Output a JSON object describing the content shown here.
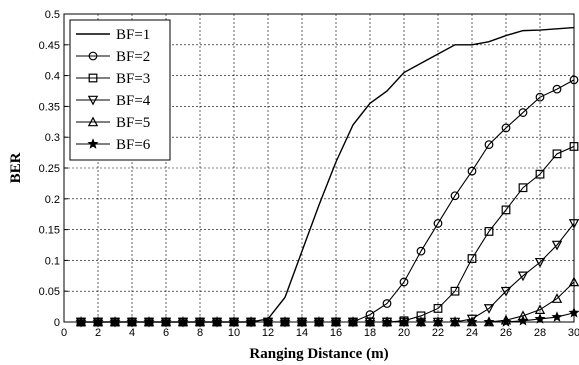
{
  "chart_data": {
    "type": "line",
    "title": "",
    "xlabel": "Ranging Distance (m)",
    "ylabel": "BER",
    "xlim": [
      0,
      30
    ],
    "ylim": [
      0,
      0.5
    ],
    "xticks": [
      0,
      2,
      4,
      6,
      8,
      10,
      12,
      14,
      16,
      18,
      20,
      22,
      24,
      26,
      28,
      30
    ],
    "yticks": [
      0,
      0.05,
      0.1,
      0.15,
      0.2,
      0.25,
      0.3,
      0.35,
      0.4,
      0.45,
      0.5
    ],
    "grid": true,
    "legend_position": "top-left",
    "x": [
      1,
      2,
      3,
      4,
      5,
      6,
      7,
      8,
      9,
      10,
      11,
      12,
      13,
      14,
      15,
      16,
      17,
      18,
      19,
      20,
      21,
      22,
      23,
      24,
      25,
      26,
      27,
      28,
      29,
      30
    ],
    "series": [
      {
        "name": "BF=1",
        "marker": "none",
        "values": [
          0,
          0,
          0,
          0,
          0,
          0,
          0,
          0,
          0,
          0,
          0,
          0.005,
          0.04,
          0.115,
          0.19,
          0.26,
          0.32,
          0.355,
          0.375,
          0.405,
          0.42,
          0.435,
          0.45,
          0.45,
          0.455,
          0.465,
          0.473,
          0.474,
          0.476,
          0.478
        ]
      },
      {
        "name": "BF=2",
        "marker": "circle",
        "values": [
          0,
          0,
          0,
          0,
          0,
          0,
          0,
          0,
          0,
          0,
          0,
          0,
          0,
          0,
          0,
          0,
          0,
          0.012,
          0.03,
          0.065,
          0.115,
          0.16,
          0.205,
          0.245,
          0.288,
          0.315,
          0.34,
          0.365,
          0.378,
          0.393
        ]
      },
      {
        "name": "BF=3",
        "marker": "square",
        "values": [
          0,
          0,
          0,
          0,
          0,
          0,
          0,
          0,
          0,
          0,
          0,
          0,
          0,
          0,
          0,
          0,
          0,
          0,
          0,
          0.002,
          0.01,
          0.022,
          0.05,
          0.103,
          0.147,
          0.182,
          0.218,
          0.24,
          0.273,
          0.285
        ]
      },
      {
        "name": "BF=4",
        "marker": "triangle-down",
        "values": [
          0,
          0,
          0,
          0,
          0,
          0,
          0,
          0,
          0,
          0,
          0,
          0,
          0,
          0,
          0,
          0,
          0,
          0,
          0,
          0,
          0,
          0,
          0,
          0.005,
          0.022,
          0.05,
          0.075,
          0.097,
          0.125,
          0.16
        ]
      },
      {
        "name": "BF=5",
        "marker": "triangle-up",
        "values": [
          0,
          0,
          0,
          0,
          0,
          0,
          0,
          0,
          0,
          0,
          0,
          0,
          0,
          0,
          0,
          0,
          0,
          0,
          0,
          0,
          0,
          0,
          0,
          0,
          0,
          0.003,
          0.01,
          0.02,
          0.038,
          0.065
        ]
      },
      {
        "name": "BF=6",
        "marker": "star",
        "values": [
          0,
          0,
          0,
          0,
          0,
          0,
          0,
          0,
          0,
          0,
          0,
          0,
          0,
          0,
          0,
          0,
          0,
          0,
          0,
          0,
          0,
          0,
          0,
          0,
          0,
          0,
          0.002,
          0.005,
          0.008,
          0.015
        ]
      }
    ]
  }
}
